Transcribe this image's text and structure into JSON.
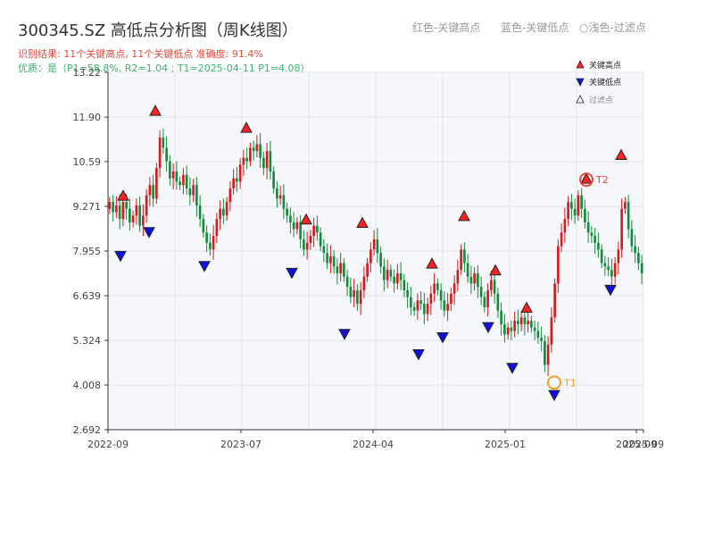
{
  "header": {
    "title": "300345.SZ 高低点分析图（周K线图）",
    "result_line": "识别结果: 11个关键高点, 11个关键低点   准确度: 91.4%",
    "quality_line": "优质：是（P1=58.8%, R2=1.04 ; T1=2025-04-11 P1=4.08）"
  },
  "top_legend": {
    "red": "红色-关键高点",
    "blue": "蓝色-关键低点",
    "light": "○浅色-过滤点"
  },
  "colors": {
    "up": "#d7191c",
    "down": "#118c3a",
    "high_marker": "#ff2020",
    "low_marker": "#1010e0",
    "t1": "#f0a020",
    "t2": "#e8483b",
    "plot_bg": "#f5f7fa",
    "grid": "#e2e6ec"
  },
  "chart_data": {
    "type": "candlestick",
    "title": "300345.SZ 高低点分析图（周K线图）",
    "xlabel": "",
    "ylabel": "",
    "ylim": [
      2.692,
      13.22
    ],
    "yticks": [
      "2.692",
      "4.008",
      "5.324",
      "6.639",
      "7.955",
      "9.271",
      "10.59",
      "11.90",
      "13.22"
    ],
    "xticks": [
      "2022-09",
      "2023-07",
      "2024-04",
      "2025-01",
      "2025-09",
      "2025-09"
    ],
    "grid": true,
    "legend": [
      {
        "label": "关键高点",
        "marker": "triangle-up-red"
      },
      {
        "label": "关键低点",
        "marker": "triangle-down-blue"
      },
      {
        "label": "过滤点",
        "marker": "triangle-up-outline"
      }
    ],
    "legend_position": "top-right",
    "close_series": [
      9.4,
      9.1,
      9.3,
      8.9,
      9.4,
      9.2,
      8.8,
      9.0,
      9.3,
      8.7,
      9.0,
      9.6,
      9.9,
      9.5,
      10.4,
      11.3,
      11.0,
      10.6,
      10.1,
      10.3,
      10.0,
      9.9,
      10.2,
      9.8,
      9.6,
      9.9,
      9.3,
      8.9,
      8.5,
      8.2,
      8.0,
      8.4,
      8.9,
      9.2,
      9.0,
      9.4,
      9.8,
      10.1,
      10.0,
      10.5,
      10.7,
      10.6,
      11.0,
      10.9,
      11.1,
      10.7,
      10.4,
      10.9,
      10.3,
      9.8,
      9.5,
      9.6,
      9.2,
      9.0,
      8.8,
      8.6,
      8.8,
      8.3,
      8.0,
      8.2,
      8.4,
      8.7,
      8.5,
      8.1,
      7.9,
      7.6,
      7.8,
      7.5,
      7.3,
      7.6,
      7.2,
      6.9,
      6.6,
      6.8,
      6.4,
      6.8,
      7.2,
      7.6,
      8.0,
      8.3,
      7.9,
      7.5,
      7.1,
      7.4,
      7.2,
      7.0,
      7.3,
      7.1,
      6.8,
      6.6,
      6.3,
      6.2,
      6.5,
      6.4,
      6.1,
      6.4,
      6.7,
      7.0,
      6.8,
      6.5,
      6.2,
      6.4,
      6.7,
      7.0,
      7.4,
      8.0,
      7.6,
      7.2,
      7.0,
      7.3,
      6.9,
      6.6,
      6.3,
      6.8,
      7.1,
      6.7,
      6.2,
      5.8,
      5.5,
      5.7,
      5.6,
      5.9,
      5.8,
      6.0,
      5.8,
      5.9,
      5.7,
      5.6,
      5.4,
      5.3,
      4.6,
      5.2,
      6.0,
      7.0,
      8.1,
      8.5,
      8.9,
      9.4,
      9.2,
      9.0,
      9.6,
      9.2,
      8.8,
      8.5,
      8.4,
      8.2,
      8.0,
      7.6,
      7.5,
      7.4,
      7.2,
      7.6,
      8.0,
      9.2,
      9.4,
      8.6,
      8.1,
      7.9,
      7.6,
      7.3
    ],
    "key_highs": [
      {
        "date": "2022-09",
        "value": 9.4
      },
      {
        "date": "2022-12",
        "value": 11.9
      },
      {
        "date": "2023-07",
        "value": 11.4
      },
      {
        "date": "2023-11",
        "value": 8.7
      },
      {
        "date": "2024-02",
        "value": 8.6
      },
      {
        "date": "2024-07",
        "value": 7.4
      },
      {
        "date": "2024-09",
        "value": 8.8
      },
      {
        "date": "2024-12",
        "value": 7.2
      },
      {
        "date": "2025-02",
        "value": 6.1
      },
      {
        "date": "2025-06",
        "value": 9.9
      },
      {
        "date": "2025-08",
        "value": 10.6
      }
    ],
    "key_lows": [
      {
        "date": "2022-09",
        "value": 8.0
      },
      {
        "date": "2022-12",
        "value": 8.7
      },
      {
        "date": "2023-04",
        "value": 7.7
      },
      {
        "date": "2023-10",
        "value": 7.5
      },
      {
        "date": "2024-02",
        "value": 5.7
      },
      {
        "date": "2024-07",
        "value": 5.1
      },
      {
        "date": "2024-09",
        "value": 5.6
      },
      {
        "date": "2024-12",
        "value": 5.9
      },
      {
        "date": "2025-01",
        "value": 4.7
      },
      {
        "date": "2025-04",
        "value": 3.9
      },
      {
        "date": "2025-08",
        "value": 7.0
      }
    ],
    "annotations": [
      {
        "label": "T1",
        "value": 4.08
      },
      {
        "label": "T2",
        "value": 9.9
      }
    ]
  }
}
